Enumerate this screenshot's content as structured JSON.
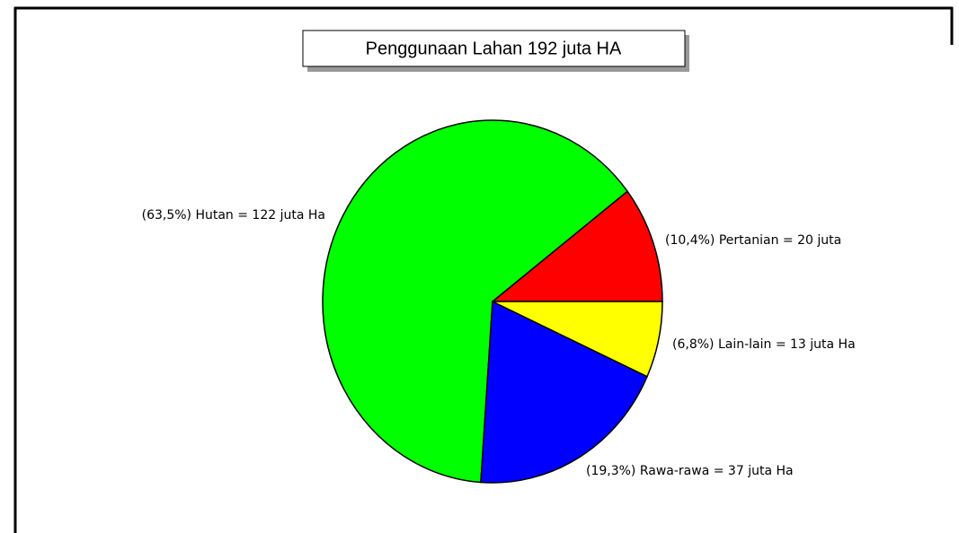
{
  "chart_data": {
    "type": "pie",
    "title": "Penggunaan Lahan 192 juta HA",
    "series": [
      {
        "name": "Pertanian",
        "color": "#ff0000",
        "values": [
          10.4
        ],
        "value_labels": [
          "(10,4%)  Pertanian = 20 juta"
        ]
      },
      {
        "name": "Hutan",
        "color": "#00ff00",
        "values": [
          63.5
        ],
        "value_labels": [
          "(63,5%) Hutan = 122 juta Ha"
        ]
      },
      {
        "name": "Rawa-rawa",
        "color": "#0000ff",
        "values": [
          19.3
        ],
        "value_labels": [
          "(19,3%) Rawa-rawa = 37 juta Ha"
        ]
      },
      {
        "name": "Lain-lain",
        "color": "#ffff00",
        "values": [
          6.8
        ],
        "value_labels": [
          "(6,8%) Lain-lain = 13 juta Ha"
        ]
      }
    ]
  }
}
